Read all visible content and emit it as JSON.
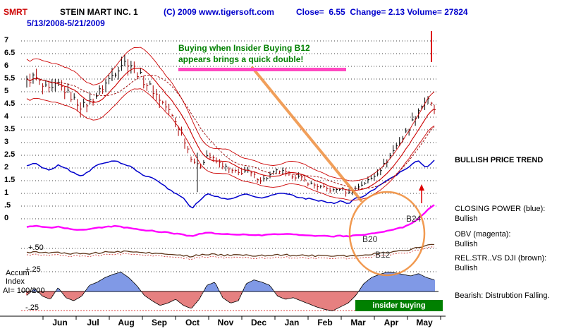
{
  "header": {
    "symbol": "SMRT",
    "title": "STEIN MART INC. 1",
    "copyright": "(C) 2009 www.tigersoft.com",
    "stats": "Close=  6.55  Change= 2.13 Volume= 27824",
    "date_range": "5/13/2008-5/21/2009"
  },
  "annotations": {
    "note_line1": "Buying when Insider Buying B12",
    "note_line2": "appears brings a quick double!",
    "b24": "B24",
    "b20": "B20",
    "b12": "B12",
    "insider_box": "insider buying"
  },
  "right_panel": {
    "price_trend": "BULLISH PRICE TREND",
    "closing_power_label": "CLOSING POWER (blue):",
    "closing_power_status": "Bullish",
    "obv_label": "OBV (magenta):",
    "obv_status": "Bullish",
    "rel_str_label": "REL.STR..VS DJI (brown):",
    "rel_str_status": "Bullish",
    "bearish_note": "Bearish: Distrubtion Falling."
  },
  "left_panel": {
    "accum": "Accum",
    "index": "Index",
    "ai": "AI= 100/200",
    "plus_50": "+.50",
    "plus_25": "+.25",
    "minus_25": "-.25"
  },
  "axes": {
    "price_labels": [
      "7",
      "6.5",
      "6",
      "5.5",
      "5",
      "4.5",
      "4",
      "3.5",
      "3",
      "2.5",
      "2",
      "1.5",
      "1",
      ".5",
      "0"
    ],
    "months": [
      "Jun",
      "Jul",
      "Aug",
      "Sep",
      "Oct",
      "Nov",
      "Dec",
      "Jan",
      "Feb",
      "Mar",
      "Apr",
      "May"
    ]
  },
  "colors": {
    "symbol_red": "#cc0000",
    "header_blue": "#0000cc",
    "note_green": "#008000",
    "underline_pink": "#ff49c1",
    "annotation_orange": "#ef8f3e",
    "candle_black": "#000000",
    "candle_down_red": "#aa0000",
    "ma_red": "#cc0000",
    "closing_power_blue": "#0000cc",
    "obv_magenta": "#ff00ff",
    "rel_str_brown": "#5c3317",
    "accum_pos_blue": "#0033cc",
    "accum_neg_red": "#cc0000",
    "insider_box_green": "#008000"
  },
  "chart_data": {
    "type": "candlestick",
    "title": "STEIN MART INC. 1 (SMRT) 5/13/2008 - 5/21/2009 daily bars with moving-average bands, Closing Power, OBV, Rel. Strength vs DJI and Accumulation Index histogram",
    "x_months": [
      "Jun",
      "Jul",
      "Aug",
      "Sep",
      "Oct",
      "Nov",
      "Dec",
      "Jan",
      "Feb",
      "Mar",
      "Apr",
      "May"
    ],
    "price_ylim": [
      0,
      7
    ],
    "price_grid_step": 0.5,
    "accum_ylim": [
      -0.25,
      0.25
    ],
    "price_weekly_close": [
      5.4,
      5.6,
      5.2,
      5.0,
      5.3,
      5.0,
      4.7,
      4.4,
      4.6,
      4.9,
      5.3,
      5.7,
      6.1,
      6.2,
      5.8,
      5.4,
      5.1,
      4.7,
      4.3,
      3.8,
      3.2,
      2.4,
      2.0,
      2.5,
      2.3,
      2.1,
      1.9,
      1.8,
      1.9,
      1.7,
      1.5,
      1.7,
      1.9,
      1.8,
      1.7,
      1.6,
      1.4,
      1.3,
      1.2,
      1.1,
      1.2,
      1.0,
      1.2,
      1.4,
      1.6,
      1.9,
      2.3,
      2.8,
      3.2,
      3.7,
      4.3,
      4.7,
      4.3
    ],
    "closing_power": [
      2.1,
      2.2,
      2.0,
      1.9,
      2.1,
      2.0,
      1.8,
      1.7,
      1.9,
      2.1,
      2.2,
      2.3,
      2.2,
      2.1,
      1.9,
      1.7,
      1.6,
      1.4,
      1.2,
      1.0,
      0.8,
      0.4,
      0.7,
      1.0,
      0.9,
      0.8,
      0.8,
      0.9,
      1.0,
      0.9,
      0.8,
      0.9,
      1.0,
      1.0,
      0.9,
      0.8,
      0.8,
      0.7,
      0.7,
      0.6,
      0.7,
      0.6,
      0.8,
      0.9,
      1.1,
      1.3,
      1.5,
      1.7,
      1.9,
      2.1,
      2.3,
      2.0,
      2.3
    ],
    "obv": [
      0.36,
      0.4,
      0.37,
      0.34,
      0.37,
      0.33,
      0.3,
      0.28,
      0.31,
      0.34,
      0.37,
      0.39,
      0.37,
      0.34,
      0.31,
      0.28,
      0.26,
      0.23,
      0.21,
      0.18,
      0.15,
      0.1,
      0.17,
      0.21,
      0.19,
      0.17,
      0.15,
      0.14,
      0.16,
      0.14,
      0.13,
      0.15,
      0.17,
      0.17,
      0.15,
      0.14,
      0.13,
      0.12,
      0.11,
      0.1,
      0.12,
      0.1,
      0.13,
      0.15,
      0.18,
      0.22,
      0.26,
      0.31,
      0.36,
      0.45,
      0.6,
      0.82,
      1.0
    ],
    "rel_strength": [
      0.5,
      0.55,
      0.5,
      0.46,
      0.5,
      0.47,
      0.44,
      0.42,
      0.45,
      0.49,
      0.52,
      0.55,
      0.58,
      0.6,
      0.55,
      0.5,
      0.47,
      0.44,
      0.4,
      0.35,
      0.3,
      0.24,
      0.34,
      0.4,
      0.37,
      0.34,
      0.31,
      0.3,
      0.33,
      0.3,
      0.28,
      0.31,
      0.34,
      0.34,
      0.31,
      0.3,
      0.29,
      0.27,
      0.25,
      0.22,
      0.27,
      0.24,
      0.29,
      0.34,
      0.39,
      0.45,
      0.5,
      0.56,
      0.62,
      0.72,
      0.85,
      1.0,
      1.1
    ],
    "accum_index": [
      -0.05,
      0.04,
      -0.06,
      -0.1,
      0.05,
      -0.08,
      -0.12,
      -0.06,
      0.08,
      0.12,
      0.18,
      0.22,
      0.25,
      0.18,
      0.08,
      -0.05,
      -0.12,
      -0.18,
      -0.15,
      -0.1,
      -0.18,
      -0.22,
      -0.1,
      0.08,
      0.12,
      -0.08,
      -0.15,
      -0.12,
      0.1,
      0.15,
      0.12,
      0.08,
      -0.06,
      -0.1,
      -0.08,
      -0.12,
      -0.16,
      -0.2,
      -0.23,
      -0.25,
      -0.2,
      -0.15,
      -0.05,
      0.1,
      0.18,
      0.22,
      0.25,
      0.24,
      0.22,
      0.2,
      0.23,
      0.18,
      0.15
    ]
  }
}
